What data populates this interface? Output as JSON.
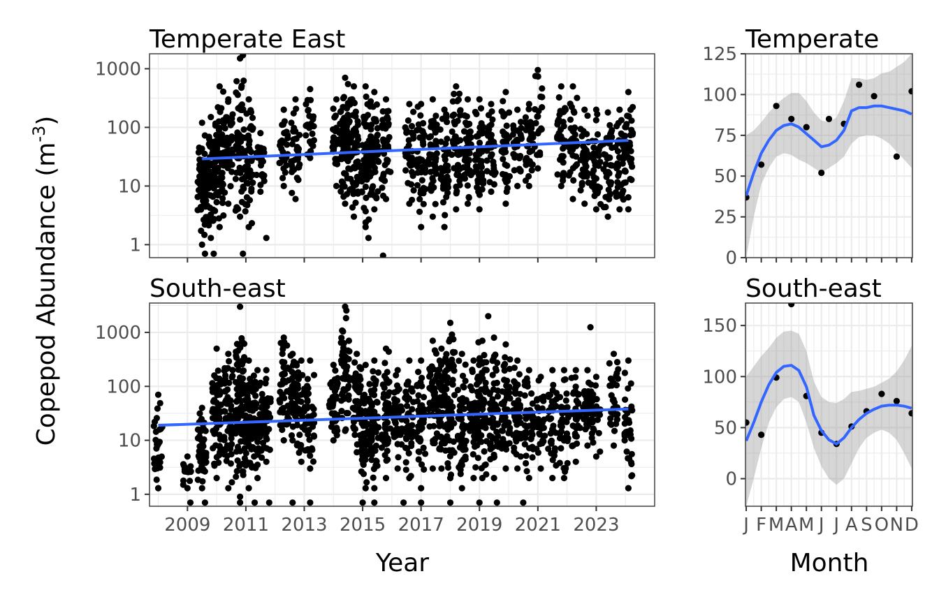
{
  "figure": {
    "y_title": "Copepod Abundance (m",
    "y_title_sup": "-3",
    "y_title_close": ")",
    "x_title_left": "Year",
    "x_title_right": "Month"
  },
  "chart_data": [
    {
      "id": "year_temperate_east",
      "type": "scatter",
      "title": "Temperate East",
      "y_scale": "log10",
      "ylim": [
        0.6,
        1800
      ],
      "xlim": [
        2007.7,
        2025.0
      ],
      "yticks": [
        1,
        10,
        100,
        1000
      ],
      "ytick_labels": [
        "1",
        "10",
        "100",
        "1000"
      ],
      "xticks": [
        2009,
        2011,
        2013,
        2015,
        2017,
        2019,
        2021,
        2023
      ],
      "xtick_labels": [],
      "clusters": [
        {
          "x": 2009.5,
          "n": 70,
          "ymin": 1.0,
          "ymax": 120
        },
        {
          "x": 2009.8,
          "n": 60,
          "ymin": 1.3,
          "ymax": 150
        },
        {
          "x": 2010.1,
          "n": 60,
          "ymin": 2,
          "ymax": 500
        },
        {
          "x": 2010.4,
          "n": 40,
          "ymin": 5,
          "ymax": 300
        },
        {
          "x": 2010.8,
          "n": 50,
          "ymin": 3,
          "ymax": 1500
        },
        {
          "x": 2011.1,
          "n": 40,
          "ymin": 2,
          "ymax": 300
        },
        {
          "x": 2011.5,
          "n": 25,
          "ymin": 8,
          "ymax": 80
        },
        {
          "x": 2012.3,
          "n": 25,
          "ymin": 10,
          "ymax": 200
        },
        {
          "x": 2012.7,
          "n": 30,
          "ymin": 6,
          "ymax": 300
        },
        {
          "x": 2013.2,
          "n": 25,
          "ymin": 30,
          "ymax": 450
        },
        {
          "x": 2014.1,
          "n": 30,
          "ymin": 10,
          "ymax": 300
        },
        {
          "x": 2014.4,
          "n": 70,
          "ymin": 5,
          "ymax": 700
        },
        {
          "x": 2014.7,
          "n": 60,
          "ymin": 3,
          "ymax": 500
        },
        {
          "x": 2015.1,
          "n": 50,
          "ymin": 2,
          "ymax": 500
        },
        {
          "x": 2015.4,
          "n": 50,
          "ymin": 4,
          "ymax": 400
        },
        {
          "x": 2015.8,
          "n": 40,
          "ymin": 6,
          "ymax": 300
        },
        {
          "x": 2016.6,
          "n": 35,
          "ymin": 5,
          "ymax": 250
        },
        {
          "x": 2017.0,
          "n": 40,
          "ymin": 2,
          "ymax": 250
        },
        {
          "x": 2017.4,
          "n": 40,
          "ymin": 3,
          "ymax": 300
        },
        {
          "x": 2017.8,
          "n": 40,
          "ymin": 2,
          "ymax": 200
        },
        {
          "x": 2018.2,
          "n": 45,
          "ymin": 4,
          "ymax": 500
        },
        {
          "x": 2018.6,
          "n": 45,
          "ymin": 5,
          "ymax": 300
        },
        {
          "x": 2019.0,
          "n": 45,
          "ymin": 4,
          "ymax": 300
        },
        {
          "x": 2019.4,
          "n": 35,
          "ymin": 8,
          "ymax": 250
        },
        {
          "x": 2019.9,
          "n": 35,
          "ymin": 5,
          "ymax": 400
        },
        {
          "x": 2020.3,
          "n": 30,
          "ymin": 10,
          "ymax": 200
        },
        {
          "x": 2020.7,
          "n": 30,
          "ymin": 10,
          "ymax": 250
        },
        {
          "x": 2021.0,
          "n": 20,
          "ymin": 20,
          "ymax": 950
        },
        {
          "x": 2021.8,
          "n": 35,
          "ymin": 10,
          "ymax": 500
        },
        {
          "x": 2022.2,
          "n": 35,
          "ymin": 6,
          "ymax": 500
        },
        {
          "x": 2022.6,
          "n": 35,
          "ymin": 5,
          "ymax": 200
        },
        {
          "x": 2023.0,
          "n": 35,
          "ymin": 4,
          "ymax": 200
        },
        {
          "x": 2023.4,
          "n": 35,
          "ymin": 3,
          "ymax": 180
        },
        {
          "x": 2023.8,
          "n": 35,
          "ymin": 4,
          "ymax": 200
        },
        {
          "x": 2024.1,
          "n": 40,
          "ymin": 4,
          "ymax": 400
        }
      ],
      "points": [
        {
          "x": 2009.6,
          "y": 0.7
        },
        {
          "x": 2009.9,
          "y": 0.7
        },
        {
          "x": 2010.9,
          "y": 0.7
        },
        {
          "x": 2011.7,
          "y": 1.3
        },
        {
          "x": 2015.7,
          "y": 0.65
        },
        {
          "x": 2015.2,
          "y": 1.3
        },
        {
          "x": 2010.9,
          "y": 1700
        }
      ],
      "trend": {
        "x": [
          2009.5,
          2024.1
        ],
        "y": [
          29,
          60
        ]
      }
    },
    {
      "id": "year_south_east",
      "type": "scatter",
      "title": "South-east",
      "y_scale": "log10",
      "ylim": [
        0.6,
        3500
      ],
      "xlim": [
        2007.7,
        2025.0
      ],
      "yticks": [
        1,
        10,
        100,
        1000
      ],
      "ytick_labels": [
        "1",
        "10",
        "100",
        "1000"
      ],
      "xticks": [
        2009,
        2011,
        2013,
        2015,
        2017,
        2019,
        2021,
        2023
      ],
      "xtick_labels": [
        "2009",
        "2011",
        "2013",
        "2015",
        "2017",
        "2019",
        "2021",
        "2023"
      ],
      "clusters": [
        {
          "x": 2008.0,
          "n": 30,
          "ymin": 1.3,
          "ymax": 70
        },
        {
          "x": 2009.0,
          "n": 15,
          "ymin": 1.3,
          "ymax": 5
        },
        {
          "x": 2009.5,
          "n": 50,
          "ymin": 1.3,
          "ymax": 40
        },
        {
          "x": 2010.0,
          "n": 70,
          "ymin": 2,
          "ymax": 500
        },
        {
          "x": 2010.4,
          "n": 60,
          "ymin": 1.3,
          "ymax": 400
        },
        {
          "x": 2010.8,
          "n": 80,
          "ymin": 0.9,
          "ymax": 3000
        },
        {
          "x": 2011.1,
          "n": 70,
          "ymin": 1.3,
          "ymax": 300
        },
        {
          "x": 2011.4,
          "n": 50,
          "ymin": 2,
          "ymax": 200
        },
        {
          "x": 2011.7,
          "n": 40,
          "ymin": 4,
          "ymax": 200
        },
        {
          "x": 2012.3,
          "n": 40,
          "ymin": 10,
          "ymax": 800
        },
        {
          "x": 2012.6,
          "n": 40,
          "ymin": 10,
          "ymax": 400
        },
        {
          "x": 2012.9,
          "n": 35,
          "ymin": 4,
          "ymax": 300
        },
        {
          "x": 2013.2,
          "n": 35,
          "ymin": 3,
          "ymax": 300
        },
        {
          "x": 2014.0,
          "n": 40,
          "ymin": 10,
          "ymax": 250
        },
        {
          "x": 2014.4,
          "n": 50,
          "ymin": 15,
          "ymax": 3000
        },
        {
          "x": 2014.8,
          "n": 50,
          "ymin": 6,
          "ymax": 400
        },
        {
          "x": 2015.1,
          "n": 50,
          "ymin": 1.3,
          "ymax": 250
        },
        {
          "x": 2015.4,
          "n": 60,
          "ymin": 1.3,
          "ymax": 300
        },
        {
          "x": 2015.8,
          "n": 50,
          "ymin": 2,
          "ymax": 500
        },
        {
          "x": 2016.2,
          "n": 40,
          "ymin": 3,
          "ymax": 200
        },
        {
          "x": 2016.6,
          "n": 40,
          "ymin": 2,
          "ymax": 300
        },
        {
          "x": 2017.0,
          "n": 45,
          "ymin": 1.3,
          "ymax": 300
        },
        {
          "x": 2017.4,
          "n": 45,
          "ymin": 3,
          "ymax": 700
        },
        {
          "x": 2017.7,
          "n": 55,
          "ymin": 3,
          "ymax": 500
        },
        {
          "x": 2018.0,
          "n": 55,
          "ymin": 2,
          "ymax": 1500
        },
        {
          "x": 2018.4,
          "n": 50,
          "ymin": 1.3,
          "ymax": 400
        },
        {
          "x": 2018.8,
          "n": 50,
          "ymin": 2,
          "ymax": 300
        },
        {
          "x": 2019.1,
          "n": 55,
          "ymin": 2,
          "ymax": 700
        },
        {
          "x": 2019.5,
          "n": 55,
          "ymin": 2,
          "ymax": 800
        },
        {
          "x": 2019.9,
          "n": 50,
          "ymin": 3,
          "ymax": 600
        },
        {
          "x": 2020.3,
          "n": 45,
          "ymin": 3,
          "ymax": 300
        },
        {
          "x": 2020.7,
          "n": 40,
          "ymin": 2,
          "ymax": 200
        },
        {
          "x": 2021.1,
          "n": 35,
          "ymin": 3,
          "ymax": 150
        },
        {
          "x": 2021.5,
          "n": 35,
          "ymin": 2,
          "ymax": 200
        },
        {
          "x": 2021.9,
          "n": 35,
          "ymin": 2,
          "ymax": 200
        },
        {
          "x": 2022.3,
          "n": 35,
          "ymin": 4,
          "ymax": 200
        },
        {
          "x": 2022.7,
          "n": 35,
          "ymin": 8,
          "ymax": 200
        },
        {
          "x": 2023.0,
          "n": 25,
          "ymin": 5,
          "ymax": 150
        },
        {
          "x": 2023.6,
          "n": 30,
          "ymin": 8,
          "ymax": 400
        },
        {
          "x": 2024.1,
          "n": 35,
          "ymin": 1.3,
          "ymax": 300
        }
      ],
      "points": [
        {
          "x": 2009.1,
          "y": 0.7
        },
        {
          "x": 2009.6,
          "y": 0.7
        },
        {
          "x": 2010.8,
          "y": 0.7
        },
        {
          "x": 2011.3,
          "y": 0.7
        },
        {
          "x": 2011.8,
          "y": 0.7
        },
        {
          "x": 2012.6,
          "y": 0.7
        },
        {
          "x": 2013.2,
          "y": 0.7
        },
        {
          "x": 2015.0,
          "y": 0.7
        },
        {
          "x": 2015.4,
          "y": 0.7
        },
        {
          "x": 2016.4,
          "y": 0.7
        },
        {
          "x": 2017.0,
          "y": 0.7
        },
        {
          "x": 2018.0,
          "y": 0.7
        },
        {
          "x": 2019.0,
          "y": 0.7
        },
        {
          "x": 2019.6,
          "y": 0.7
        },
        {
          "x": 2020.5,
          "y": 0.7
        },
        {
          "x": 2022.8,
          "y": 1250
        },
        {
          "x": 2019.3,
          "y": 2000
        }
      ],
      "trend": {
        "x": [
          2008.0,
          2024.1
        ],
        "y": [
          19,
          38
        ]
      }
    },
    {
      "id": "month_temperate",
      "type": "scatter",
      "title": "Temperate",
      "y_scale": "linear",
      "ylim": [
        0,
        125
      ],
      "xlim": [
        0.95,
        12.05
      ],
      "yticks": [
        0,
        25,
        50,
        75,
        100,
        125
      ],
      "ytick_labels": [
        "0",
        "25",
        "50",
        "75",
        "100",
        "125"
      ],
      "xticks": [
        1,
        2,
        3,
        4,
        5,
        6,
        7,
        8,
        9,
        10,
        11,
        12
      ],
      "xtick_labels": [],
      "points": [
        {
          "x": 1,
          "y": 37
        },
        {
          "x": 2,
          "y": 57
        },
        {
          "x": 3,
          "y": 93
        },
        {
          "x": 4,
          "y": 85
        },
        {
          "x": 5,
          "y": 80
        },
        {
          "x": 6,
          "y": 52
        },
        {
          "x": 6.5,
          "y": 85
        },
        {
          "x": 7.5,
          "y": 82
        },
        {
          "x": 8.5,
          "y": 106
        },
        {
          "x": 9.5,
          "y": 99
        },
        {
          "x": 11,
          "y": 62
        },
        {
          "x": 12,
          "y": 102
        }
      ],
      "smooth": {
        "x": [
          1,
          1.5,
          2,
          2.5,
          3,
          3.5,
          4,
          4.5,
          5,
          5.5,
          6,
          6.5,
          7,
          7.5,
          8,
          8.5,
          9,
          9.5,
          10,
          10.5,
          11,
          11.5,
          12
        ],
        "y": [
          38,
          52,
          64,
          72,
          78,
          81,
          82,
          80,
          76,
          72,
          68,
          69,
          72,
          78,
          90,
          92,
          92,
          93,
          93,
          92,
          91,
          90,
          88
        ],
        "lower": [
          0,
          25,
          45,
          55,
          62,
          64,
          63,
          60,
          58,
          55,
          52,
          55,
          58,
          62,
          70,
          74,
          75,
          75,
          73,
          70,
          65,
          60,
          55
        ],
        "upper": [
          75,
          78,
          83,
          89,
          94,
          98,
          101,
          101,
          96,
          89,
          84,
          83,
          86,
          96,
          110,
          110,
          109,
          110,
          113,
          114,
          117,
          120,
          125
        ]
      }
    },
    {
      "id": "month_south_east",
      "type": "scatter",
      "title": "South-east",
      "y_scale": "linear",
      "ylim": [
        -27,
        172
      ],
      "xlim": [
        0.95,
        12.05
      ],
      "yticks": [
        0,
        50,
        100,
        150
      ],
      "ytick_labels": [
        "0",
        "50",
        "100",
        "150"
      ],
      "xticks": [
        1,
        2,
        3,
        4,
        5,
        6,
        7,
        8,
        9,
        10,
        11,
        12
      ],
      "xtick_labels": [
        "J",
        "F",
        "M",
        "A",
        "M",
        "J",
        "J",
        "A",
        "S",
        "O",
        "N",
        "D"
      ],
      "points": [
        {
          "x": 1,
          "y": 55
        },
        {
          "x": 2,
          "y": 43
        },
        {
          "x": 3,
          "y": 99
        },
        {
          "x": 4,
          "y": 171
        },
        {
          "x": 5,
          "y": 81
        },
        {
          "x": 6,
          "y": 45
        },
        {
          "x": 7,
          "y": 34
        },
        {
          "x": 8,
          "y": 51
        },
        {
          "x": 9,
          "y": 66
        },
        {
          "x": 10,
          "y": 83
        },
        {
          "x": 11,
          "y": 76
        },
        {
          "x": 12,
          "y": 64
        }
      ],
      "smooth": {
        "x": [
          1,
          1.5,
          2,
          2.5,
          3,
          3.5,
          4,
          4.5,
          5,
          5.5,
          6,
          6.5,
          7,
          7.5,
          8,
          8.5,
          9,
          9.5,
          10,
          10.5,
          11,
          11.5,
          12
        ],
        "y": [
          37,
          55,
          75,
          92,
          104,
          110,
          111,
          106,
          90,
          62,
          47,
          38,
          34,
          40,
          50,
          58,
          64,
          68,
          71,
          72,
          72,
          71,
          69
        ],
        "lower": [
          -27,
          0,
          30,
          55,
          70,
          78,
          80,
          75,
          55,
          30,
          12,
          0,
          -6,
          0,
          15,
          30,
          40,
          45,
          48,
          45,
          38,
          25,
          10
        ],
        "upper": [
          100,
          110,
          120,
          128,
          138,
          144,
          145,
          142,
          125,
          95,
          80,
          75,
          74,
          78,
          85,
          86,
          88,
          90,
          94,
          98,
          105,
          116,
          130
        ]
      }
    }
  ]
}
